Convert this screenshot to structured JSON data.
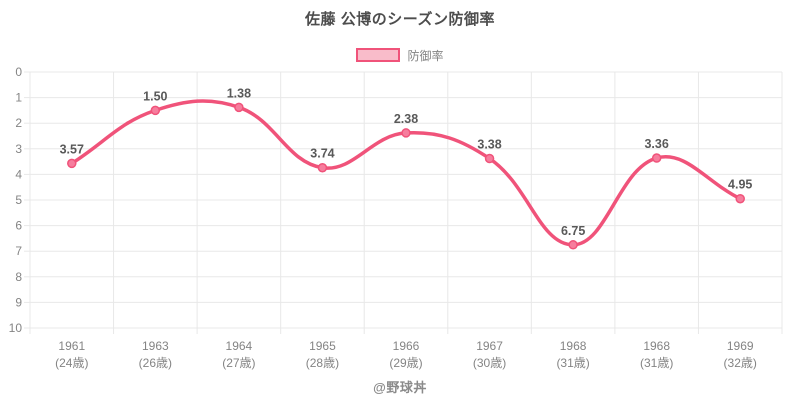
{
  "chart_data": {
    "type": "line",
    "title": "佐藤 公博のシーズン防御率",
    "legend_label": "防御率",
    "series_name": "防御率",
    "categories": [
      {
        "year": "1961",
        "age": "(24歳)"
      },
      {
        "year": "1963",
        "age": "(26歳)"
      },
      {
        "year": "1964",
        "age": "(27歳)"
      },
      {
        "year": "1965",
        "age": "(28歳)"
      },
      {
        "year": "1966",
        "age": "(29歳)"
      },
      {
        "year": "1967",
        "age": "(30歳)"
      },
      {
        "year": "1968",
        "age": "(31歳)"
      },
      {
        "year": "1968",
        "age": "(31歳)"
      },
      {
        "year": "1969",
        "age": "(32歳)"
      }
    ],
    "values": [
      3.57,
      1.5,
      1.38,
      3.74,
      2.38,
      3.38,
      6.75,
      3.36,
      4.95
    ],
    "value_labels": [
      "3.57",
      "1.50",
      "1.38",
      "3.74",
      "2.38",
      "3.38",
      "6.75",
      "3.36",
      "4.95"
    ],
    "y_axis": {
      "min": 0,
      "max": 10,
      "reversed": true,
      "ticks": [
        "0",
        "1",
        "2",
        "3",
        "4",
        "5",
        "6",
        "7",
        "8",
        "9",
        "10"
      ]
    },
    "grid": true,
    "legend_position": "top",
    "footer": "@野球丼",
    "colors": {
      "line": "#f0537a",
      "point_fill": "#f67d9d",
      "legend_fill": "#f9bcca",
      "grid": "#e8e8e8",
      "tick_text": "#848484",
      "value_label": "#595959",
      "title_text": "#4d4d4d",
      "footer_text": "#8a8a8a"
    }
  }
}
